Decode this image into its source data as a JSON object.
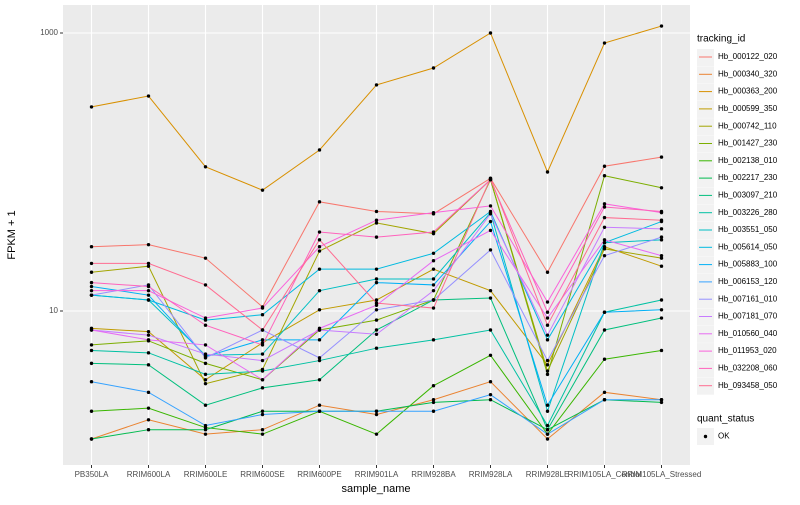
{
  "chart_data": {
    "type": "line",
    "log_scale": true,
    "grid": true,
    "legend_position": "right",
    "x_label": "sample_name",
    "y_label": "FPKM + 1",
    "legend_title": "tracking_id",
    "point_legend": {
      "title": "quant_status",
      "label": "OK",
      "color": "#000000"
    },
    "categories": [
      "PB350LA",
      "RRIM600LA",
      "RRIM600LE",
      "RRIM600SE",
      "RRIM600PE",
      "RRIM901LA",
      "RRIM928BA",
      "RRIM928LA",
      "RRIM928LE",
      "RRIM105LA_Control",
      "RRIM105LA_Stressed"
    ],
    "ylim": [
      0.78,
      1590
    ],
    "yticks": [
      10,
      1000
    ],
    "series": [
      {
        "name": "Hb_000122_020",
        "color": "#F8766D",
        "values": [
          29,
          30,
          24,
          10.7,
          61,
          52,
          50,
          90,
          19,
          110,
          128
        ]
      },
      {
        "name": "Hb_000340_320",
        "color": "#EA8331",
        "values": [
          1.2,
          1.65,
          1.3,
          1.4,
          2.1,
          1.8,
          2.3,
          3.1,
          1.2,
          2.6,
          2.3
        ]
      },
      {
        "name": "Hb_000363_200",
        "color": "#D89000",
        "values": [
          294,
          352,
          109,
          74,
          144,
          423,
          560,
          1000,
          100,
          847,
          1122
        ]
      },
      {
        "name": "Hb_000599_350",
        "color": "#C09B00",
        "values": [
          7.5,
          7.1,
          3.2,
          5.9,
          10.2,
          12,
          20,
          14,
          4.1,
          29,
          21
        ]
      },
      {
        "name": "Hb_000742_110",
        "color": "#A3A500",
        "values": [
          19,
          21,
          3.0,
          3.8,
          27,
          43,
          36,
          88,
          3.7,
          28,
          24
        ]
      },
      {
        "name": "Hb_001427_230",
        "color": "#7CAE00",
        "values": [
          5.7,
          6.1,
          4.2,
          3.2,
          7.3,
          8.6,
          12,
          88,
          3.5,
          94,
          77
        ]
      },
      {
        "name": "Hb_002138_010",
        "color": "#39B600",
        "values": [
          1.9,
          2.0,
          1.45,
          1.3,
          1.9,
          1.3,
          2.9,
          4.8,
          1.3,
          4.5,
          5.2
        ]
      },
      {
        "name": "Hb_002217_230",
        "color": "#00BB4E",
        "values": [
          1.2,
          1.4,
          1.4,
          1.9,
          1.9,
          1.9,
          2.2,
          2.3,
          1.4,
          2.3,
          2.2
        ]
      },
      {
        "name": "Hb_003097_210",
        "color": "#00BF7D",
        "values": [
          4.2,
          4.1,
          2.1,
          2.8,
          3.2,
          7.3,
          12,
          12.4,
          1.4,
          7.3,
          8.9
        ]
      },
      {
        "name": "Hb_003226_280",
        "color": "#00C1A3",
        "values": [
          5.2,
          5.0,
          3.5,
          3.7,
          4.4,
          5.4,
          6.2,
          7.3,
          1.5,
          9.8,
          12
        ]
      },
      {
        "name": "Hb_003551_050",
        "color": "#00BFC4",
        "values": [
          13,
          12,
          4.8,
          4.9,
          14,
          17,
          17,
          51,
          1.9,
          31,
          32.5
        ]
      },
      {
        "name": "Hb_005614_050",
        "color": "#00BAE0",
        "values": [
          13,
          12,
          8.6,
          9.4,
          20,
          20,
          26,
          52,
          6.2,
          31,
          44
        ]
      },
      {
        "name": "Hb_005883_100",
        "color": "#00B0F6",
        "values": [
          15,
          13,
          4.7,
          6.2,
          6.2,
          16,
          15.4,
          44,
          2.1,
          9.8,
          10.2
        ]
      },
      {
        "name": "Hb_006153_120",
        "color": "#35A2FF",
        "values": [
          3.1,
          2.6,
          1.5,
          1.8,
          1.9,
          1.9,
          1.9,
          2.5,
          1.3,
          2.3,
          2.3
        ]
      },
      {
        "name": "Hb_007161_010",
        "color": "#9590FF",
        "values": [
          13,
          15.4,
          4.6,
          7.3,
          4.6,
          10.2,
          12,
          27.5,
          4.4,
          25,
          34
        ]
      },
      {
        "name": "Hb_007181_070",
        "color": "#C77CFF",
        "values": [
          7.3,
          6.7,
          4.9,
          4.4,
          7.3,
          6.8,
          14,
          50,
          6.7,
          40,
          39
        ]
      },
      {
        "name": "Hb_010560_040",
        "color": "#E76BF3",
        "values": [
          7.3,
          6.2,
          5.7,
          3.2,
          7.5,
          11,
          23,
          38,
          8.9,
          32.5,
          25
        ]
      },
      {
        "name": "Hb_011953_020",
        "color": "#FA62DB",
        "values": [
          14,
          14,
          8.9,
          10.5,
          29,
          45,
          51,
          57,
          11.6,
          59,
          51
        ]
      },
      {
        "name": "Hb_032208_060",
        "color": "#FF62BC",
        "values": [
          16,
          15,
          7.9,
          5.7,
          37,
          34,
          37,
          88,
          9.8,
          56,
          52
        ]
      },
      {
        "name": "Hb_093458_050",
        "color": "#FF6C91",
        "values": [
          22,
          22,
          15.4,
          7.3,
          32.5,
          11.4,
          10.5,
          90,
          7.9,
          47,
          45
        ]
      }
    ]
  }
}
